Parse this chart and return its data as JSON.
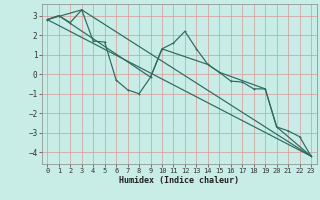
{
  "xlabel": "Humidex (Indice chaleur)",
  "bg_color": "#c8ece6",
  "line_color": "#2a6b60",
  "grid_color": "#d89898",
  "xlim": [
    -0.5,
    23.5
  ],
  "ylim": [
    -4.6,
    3.6
  ],
  "yticks": [
    -4,
    -3,
    -2,
    -1,
    0,
    1,
    2,
    3
  ],
  "xticks": [
    0,
    1,
    2,
    3,
    4,
    5,
    6,
    7,
    8,
    9,
    10,
    11,
    12,
    13,
    14,
    15,
    16,
    17,
    18,
    19,
    20,
    21,
    22,
    23
  ],
  "line1_x": [
    0,
    1,
    2,
    3,
    4,
    5,
    6,
    7,
    8,
    9,
    10,
    11,
    12,
    13,
    14,
    15,
    16,
    17,
    18,
    19,
    20,
    21,
    22,
    23
  ],
  "line1_y": [
    2.8,
    3.0,
    2.65,
    3.3,
    1.7,
    1.65,
    -0.3,
    -0.8,
    -1.0,
    -0.15,
    1.3,
    1.6,
    2.2,
    1.3,
    0.5,
    0.1,
    -0.35,
    -0.4,
    -0.75,
    -0.75,
    -2.7,
    -2.9,
    -3.2,
    -4.2
  ],
  "line2_x": [
    0,
    3,
    23
  ],
  "line2_y": [
    2.8,
    3.3,
    -4.2
  ],
  "line3_x": [
    0,
    1,
    9,
    10,
    14,
    15,
    19,
    20,
    23
  ],
  "line3_y": [
    2.8,
    3.0,
    -0.15,
    1.3,
    0.5,
    0.1,
    -0.75,
    -2.7,
    -4.2
  ],
  "line4_x": [
    0,
    23
  ],
  "line4_y": [
    2.8,
    -4.2
  ]
}
